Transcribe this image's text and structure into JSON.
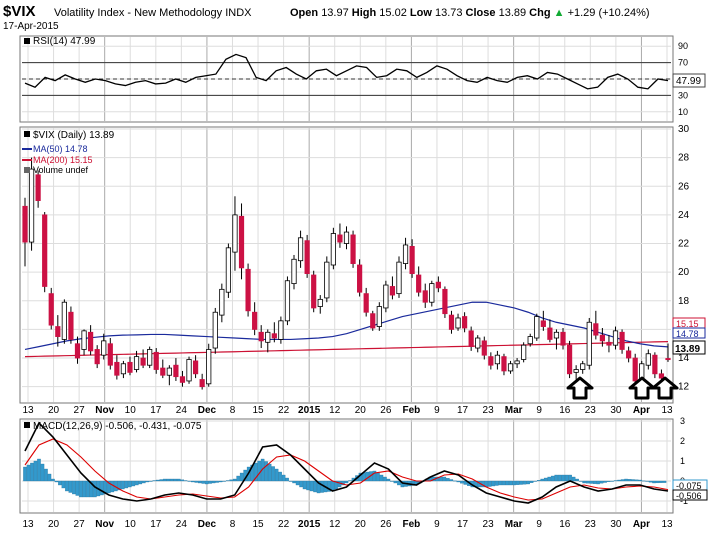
{
  "header": {
    "symbol": "$VIX",
    "name": "Volatility Index - New Methodology",
    "exchange": "INDX",
    "date": "17-Apr-2015",
    "open_label": "Open",
    "open": "13.97",
    "high_label": "High",
    "high": "15.02",
    "low_label": "Low",
    "low": "13.73",
    "close_label": "Close",
    "close": "13.89",
    "chg_label": "Chg",
    "chg": "+1.29 (+10.24%)",
    "up_icon": "green-up-triangle-icon"
  },
  "colors": {
    "up_candle": "#ffffff",
    "down_candle": "#cc1144",
    "ma50": "#1a2a9c",
    "ma200": "#cc1133",
    "macd_line": "#000000",
    "signal_line": "#dd0000",
    "histogram": "#3399cc",
    "arrow": "#000000",
    "grid": "#dddddd",
    "axis_marker": "#555555"
  },
  "chart_data": [
    {
      "type": "line",
      "panel": "RSI",
      "legend": "RSI(14) 47.99",
      "ylim": [
        0,
        100
      ],
      "y_ticks": [
        10,
        30,
        50,
        70,
        90
      ],
      "reference_lines": [
        30,
        50,
        70
      ],
      "last_value": "47.99",
      "series": [
        {
          "name": "RSI(14)",
          "values": [
            45,
            40,
            52,
            48,
            55,
            50,
            46,
            50,
            48,
            44,
            42,
            46,
            48,
            44,
            45,
            50,
            46,
            52,
            54,
            56,
            74,
            80,
            76,
            52,
            48,
            60,
            64,
            56,
            50,
            60,
            62,
            54,
            60,
            66,
            64,
            52,
            54,
            62,
            60,
            52,
            58,
            66,
            62,
            54,
            48,
            46,
            52,
            48,
            46,
            52,
            54,
            50,
            58,
            56,
            50,
            44,
            38,
            40,
            52,
            56,
            50,
            40,
            38,
            50,
            48
          ]
        }
      ]
    },
    {
      "type": "candlestick",
      "panel": "Price",
      "legend": [
        "$VIX (Daily) 13.89",
        "MA(50) 14.78",
        "MA(200) 15.15",
        "Volume undef"
      ],
      "ylim": [
        11,
        30
      ],
      "y_ticks": [
        12,
        14,
        16,
        18,
        20,
        22,
        24,
        26,
        28,
        30
      ],
      "x_ticks": [
        "13",
        "20",
        "27",
        "Nov",
        "10",
        "17",
        "24",
        "Dec",
        "8",
        "15",
        "22",
        "2015",
        "12",
        "20",
        "26",
        "Feb",
        "9",
        "17",
        "23",
        "Mar",
        "9",
        "16",
        "23",
        "30",
        "Apr",
        "13"
      ],
      "price_tags": {
        "ma200": "15.15",
        "ma50": "14.78",
        "close": "13.89"
      },
      "annotations": [
        "up-arrow at Mar 23",
        "up-arrow at Apr 9",
        "up-arrow at Apr 15"
      ],
      "ohlc": [
        [
          24.6,
          25.2,
          20.4,
          22.1
        ],
        [
          22.1,
          28.0,
          21.5,
          27.2
        ],
        [
          26.8,
          27.1,
          24.5,
          25.0
        ],
        [
          24.0,
          24.2,
          18.6,
          19.0
        ],
        [
          18.5,
          18.9,
          16.0,
          16.3
        ],
        [
          16.2,
          17.0,
          14.8,
          15.5
        ],
        [
          15.3,
          18.1,
          15.0,
          17.9
        ],
        [
          17.2,
          17.6,
          15.0,
          15.3
        ],
        [
          15.0,
          15.5,
          13.6,
          14.0
        ],
        [
          14.6,
          16.0,
          14.2,
          15.9
        ],
        [
          15.8,
          16.3,
          14.2,
          14.5
        ],
        [
          14.6,
          14.9,
          13.3,
          13.6
        ],
        [
          14.2,
          15.7,
          13.9,
          15.2
        ],
        [
          15.0,
          15.4,
          13.2,
          13.5
        ],
        [
          13.7,
          14.2,
          12.5,
          12.8
        ],
        [
          12.9,
          13.8,
          12.6,
          13.6
        ],
        [
          13.7,
          14.1,
          12.8,
          13.0
        ],
        [
          13.2,
          14.5,
          13.0,
          14.1
        ],
        [
          14.0,
          14.6,
          13.3,
          13.5
        ],
        [
          13.5,
          14.8,
          13.3,
          14.6
        ],
        [
          14.4,
          14.7,
          12.9,
          13.2
        ],
        [
          13.3,
          13.9,
          12.6,
          12.8
        ],
        [
          12.8,
          13.5,
          12.1,
          13.3
        ],
        [
          13.5,
          14.0,
          12.4,
          12.7
        ],
        [
          12.7,
          13.1,
          12.0,
          12.3
        ],
        [
          12.4,
          14.1,
          12.2,
          13.9
        ],
        [
          13.8,
          14.2,
          12.6,
          12.9
        ],
        [
          12.5,
          12.9,
          11.8,
          12.0
        ],
        [
          12.2,
          15.0,
          12.0,
          14.6
        ],
        [
          14.7,
          17.5,
          14.3,
          17.2
        ],
        [
          17.0,
          19.2,
          16.5,
          18.8
        ],
        [
          18.6,
          22.0,
          18.2,
          21.7
        ],
        [
          21.4,
          25.3,
          20.1,
          24.0
        ],
        [
          23.9,
          24.8,
          19.5,
          20.3
        ],
        [
          20.2,
          20.6,
          16.9,
          17.3
        ],
        [
          17.2,
          17.9,
          15.6,
          16.0
        ],
        [
          15.8,
          16.3,
          14.7,
          15.2
        ],
        [
          15.1,
          16.0,
          14.4,
          15.8
        ],
        [
          15.7,
          16.5,
          15.1,
          15.4
        ],
        [
          15.3,
          16.9,
          15.0,
          16.6
        ],
        [
          16.6,
          19.7,
          16.3,
          19.4
        ],
        [
          19.2,
          21.2,
          18.8,
          20.9
        ],
        [
          20.8,
          22.9,
          20.3,
          22.4
        ],
        [
          22.2,
          22.6,
          19.6,
          19.9
        ],
        [
          19.8,
          20.1,
          17.2,
          17.5
        ],
        [
          17.6,
          18.4,
          17.1,
          18.1
        ],
        [
          18.2,
          21.1,
          17.9,
          20.7
        ],
        [
          20.5,
          23.1,
          20.2,
          22.7
        ],
        [
          22.6,
          23.4,
          21.7,
          22.1
        ],
        [
          22.0,
          23.2,
          21.6,
          22.8
        ],
        [
          22.6,
          22.9,
          20.3,
          20.6
        ],
        [
          20.5,
          20.9,
          18.3,
          18.6
        ],
        [
          18.5,
          18.9,
          16.9,
          17.2
        ],
        [
          17.1,
          17.3,
          15.9,
          16.1
        ],
        [
          16.2,
          17.9,
          15.9,
          17.6
        ],
        [
          17.5,
          19.4,
          17.2,
          19.1
        ],
        [
          19.0,
          19.7,
          18.1,
          18.4
        ],
        [
          18.5,
          21.1,
          18.2,
          20.7
        ],
        [
          20.6,
          22.4,
          20.2,
          21.9
        ],
        [
          21.8,
          22.3,
          19.6,
          19.9
        ],
        [
          19.8,
          20.4,
          18.3,
          18.6
        ],
        [
          18.7,
          19.2,
          17.5,
          17.9
        ],
        [
          17.9,
          19.4,
          17.6,
          19.2
        ],
        [
          19.3,
          19.7,
          18.6,
          18.9
        ],
        [
          18.8,
          19.0,
          16.8,
          17.1
        ],
        [
          17.0,
          17.3,
          15.7,
          16.0
        ],
        [
          16.1,
          17.1,
          15.9,
          16.8
        ],
        [
          16.9,
          17.2,
          15.8,
          16.1
        ],
        [
          15.9,
          16.2,
          14.5,
          14.8
        ],
        [
          14.7,
          15.6,
          14.4,
          15.4
        ],
        [
          15.2,
          15.5,
          13.9,
          14.2
        ],
        [
          14.1,
          14.4,
          13.2,
          13.5
        ],
        [
          13.6,
          14.5,
          13.2,
          14.2
        ],
        [
          14.1,
          14.3,
          12.8,
          13.1
        ],
        [
          13.1,
          13.8,
          12.9,
          13.6
        ],
        [
          13.6,
          14.0,
          13.3,
          13.8
        ],
        [
          13.9,
          15.1,
          13.7,
          14.9
        ],
        [
          15.0,
          15.7,
          14.8,
          15.5
        ],
        [
          15.4,
          17.1,
          15.2,
          16.9
        ],
        [
          16.6,
          17.3,
          15.9,
          16.2
        ],
        [
          16.1,
          16.7,
          15.1,
          15.3
        ],
        [
          15.4,
          16.0,
          14.6,
          15.8
        ],
        [
          15.8,
          16.1,
          14.6,
          14.9
        ],
        [
          14.9,
          15.2,
          12.6,
          12.9
        ],
        [
          13.0,
          13.5,
          12.5,
          13.2
        ],
        [
          13.2,
          13.8,
          12.9,
          13.6
        ],
        [
          13.5,
          16.8,
          13.2,
          16.5
        ],
        [
          16.4,
          17.3,
          15.3,
          15.6
        ],
        [
          15.6,
          16.1,
          14.8,
          15.2
        ],
        [
          15.1,
          15.6,
          14.4,
          14.9
        ],
        [
          14.9,
          16.2,
          14.6,
          15.9
        ],
        [
          15.8,
          16.0,
          14.3,
          14.6
        ],
        [
          14.5,
          14.8,
          13.7,
          14.0
        ],
        [
          14.0,
          14.3,
          12.1,
          12.4
        ],
        [
          12.5,
          13.8,
          12.2,
          13.6
        ],
        [
          13.5,
          14.6,
          13.2,
          14.3
        ],
        [
          14.2,
          14.4,
          12.6,
          12.9
        ],
        [
          12.9,
          13.2,
          12.5,
          12.6
        ],
        [
          13.97,
          15.02,
          13.73,
          13.89
        ]
      ],
      "series": [
        {
          "name": "MA(50)",
          "values": [
            14.6,
            14.8,
            15.0,
            15.2,
            15.35,
            15.45,
            15.55,
            15.6,
            15.62,
            15.65,
            15.65,
            15.6,
            15.55,
            15.5,
            15.45,
            15.4,
            15.35,
            15.3,
            15.3,
            15.3,
            15.35,
            15.4,
            15.5,
            15.7,
            16.0,
            16.3,
            16.6,
            16.9,
            17.1,
            17.3,
            17.5,
            17.7,
            17.9,
            17.9,
            17.7,
            17.5,
            17.2,
            16.8,
            16.5,
            16.3,
            16.1,
            15.8,
            15.5,
            15.2,
            15.0,
            14.85,
            14.78
          ]
        }
      ]
    },
    {
      "type": "line",
      "panel": "MACD",
      "legend": "MACD(12,26,9) -0.506, -0.431, -0.075",
      "ylim": [
        -1.5,
        3
      ],
      "y_ticks": [
        -1,
        0,
        1,
        2,
        3
      ],
      "price_tags": {
        "histogram": "-0.075",
        "macd": "-0.506"
      },
      "series": [
        {
          "name": "MACD",
          "values": [
            1.5,
            2.9,
            2.2,
            1.3,
            0.4,
            -0.3,
            -0.7,
            -0.9,
            -1.0,
            -0.9,
            -0.7,
            -0.6,
            -0.7,
            -0.9,
            -0.9,
            -0.7,
            0.4,
            1.7,
            1.8,
            1.3,
            0.6,
            -0.1,
            -0.5,
            -0.3,
            0.3,
            0.9,
            0.6,
            -0.1,
            -0.2,
            0.2,
            0.5,
            0.3,
            -0.2,
            -0.6,
            -0.8,
            -1.0,
            -1.1,
            -0.8,
            -0.3,
            0.0,
            -0.3,
            -0.5,
            -0.4,
            -0.2,
            -0.2,
            -0.4,
            -0.5
          ]
        },
        {
          "name": "Signal",
          "values": [
            0.8,
            1.8,
            2.1,
            1.8,
            1.2,
            0.5,
            -0.1,
            -0.5,
            -0.8,
            -0.9,
            -0.8,
            -0.7,
            -0.65,
            -0.75,
            -0.85,
            -0.8,
            -0.3,
            0.6,
            1.2,
            1.3,
            1.0,
            0.5,
            0.0,
            -0.2,
            -0.1,
            0.4,
            0.5,
            0.2,
            0.0,
            0.0,
            0.3,
            0.35,
            0.1,
            -0.3,
            -0.6,
            -0.8,
            -0.95,
            -0.9,
            -0.6,
            -0.3,
            -0.2,
            -0.35,
            -0.4,
            -0.3,
            -0.25,
            -0.3,
            -0.431
          ]
        },
        {
          "name": "Histogram",
          "values": [
            0.7,
            1.1,
            0.1,
            -0.5,
            -0.8,
            -0.8,
            -0.6,
            -0.4,
            -0.2,
            0.0,
            0.1,
            0.1,
            -0.05,
            -0.15,
            -0.05,
            0.1,
            0.7,
            1.1,
            0.6,
            0.0,
            -0.4,
            -0.6,
            -0.5,
            -0.1,
            0.4,
            0.5,
            0.1,
            -0.3,
            -0.2,
            0.2,
            0.2,
            -0.05,
            -0.3,
            -0.3,
            -0.2,
            -0.2,
            -0.15,
            0.1,
            0.3,
            0.3,
            -0.1,
            -0.15,
            0.0,
            0.1,
            0.05,
            -0.1,
            -0.075
          ]
        }
      ]
    }
  ]
}
